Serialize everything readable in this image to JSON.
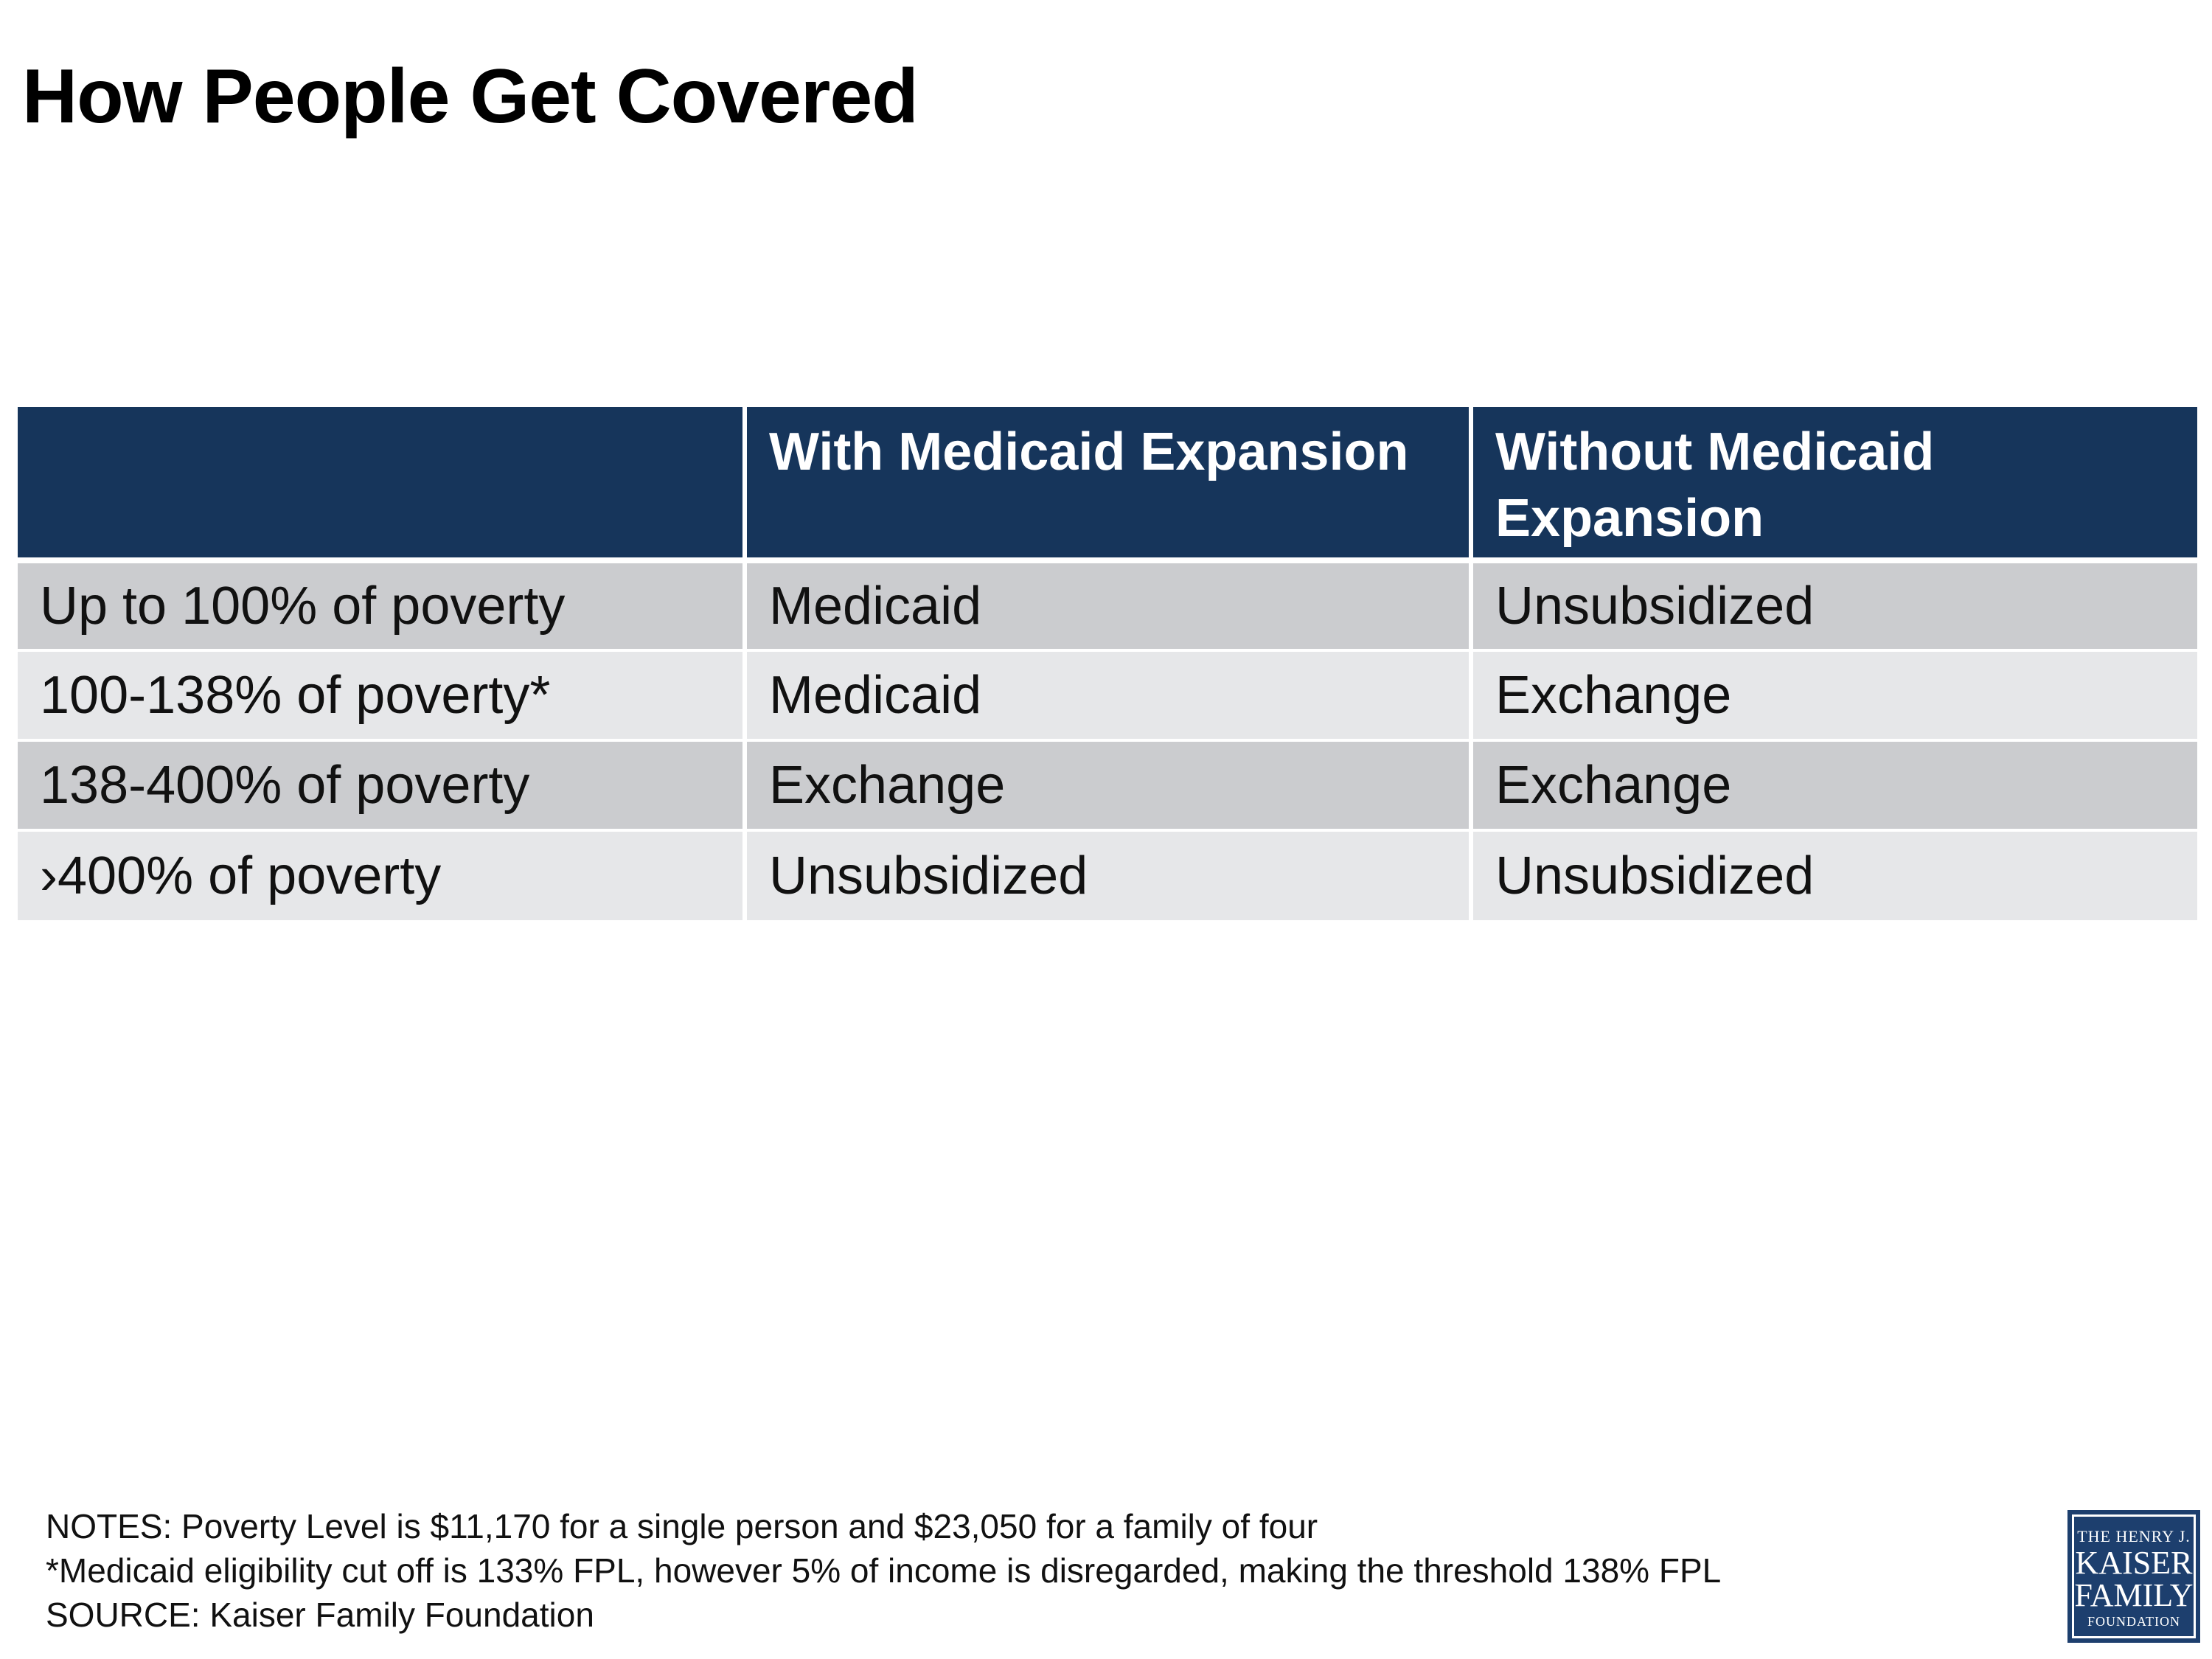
{
  "title": "How People Get Covered",
  "table": {
    "headers": [
      "",
      "With Medicaid Expansion",
      "Without Medicaid Expansion"
    ],
    "rows": [
      [
        "Up to 100% of poverty",
        "Medicaid",
        "Unsubsidized"
      ],
      [
        "100-138% of poverty*",
        "Medicaid",
        "Exchange"
      ],
      [
        "138-400% of poverty",
        "Exchange",
        "Exchange"
      ],
      [
        "›400% of poverty",
        "Unsubsidized",
        "Unsubsidized"
      ]
    ]
  },
  "notes": {
    "line1": "NOTES: Poverty Level is $11,170 for a single person and $23,050 for a family of four",
    "line2": "*Medicaid eligibility cut off is 133% FPL, however 5% of income is disregarded, making the threshold 138% FPL",
    "line3": "SOURCE: Kaiser Family Foundation"
  },
  "logo": {
    "line1": "THE HENRY J.",
    "line2": "KAISER",
    "line3": "FAMILY",
    "line4": "FOUNDATION"
  },
  "colors": {
    "header_bg": "#16355b",
    "row_dark": "#cbcccf",
    "row_light": "#e6e7e9",
    "logo_bg": "#1d3f6e"
  }
}
